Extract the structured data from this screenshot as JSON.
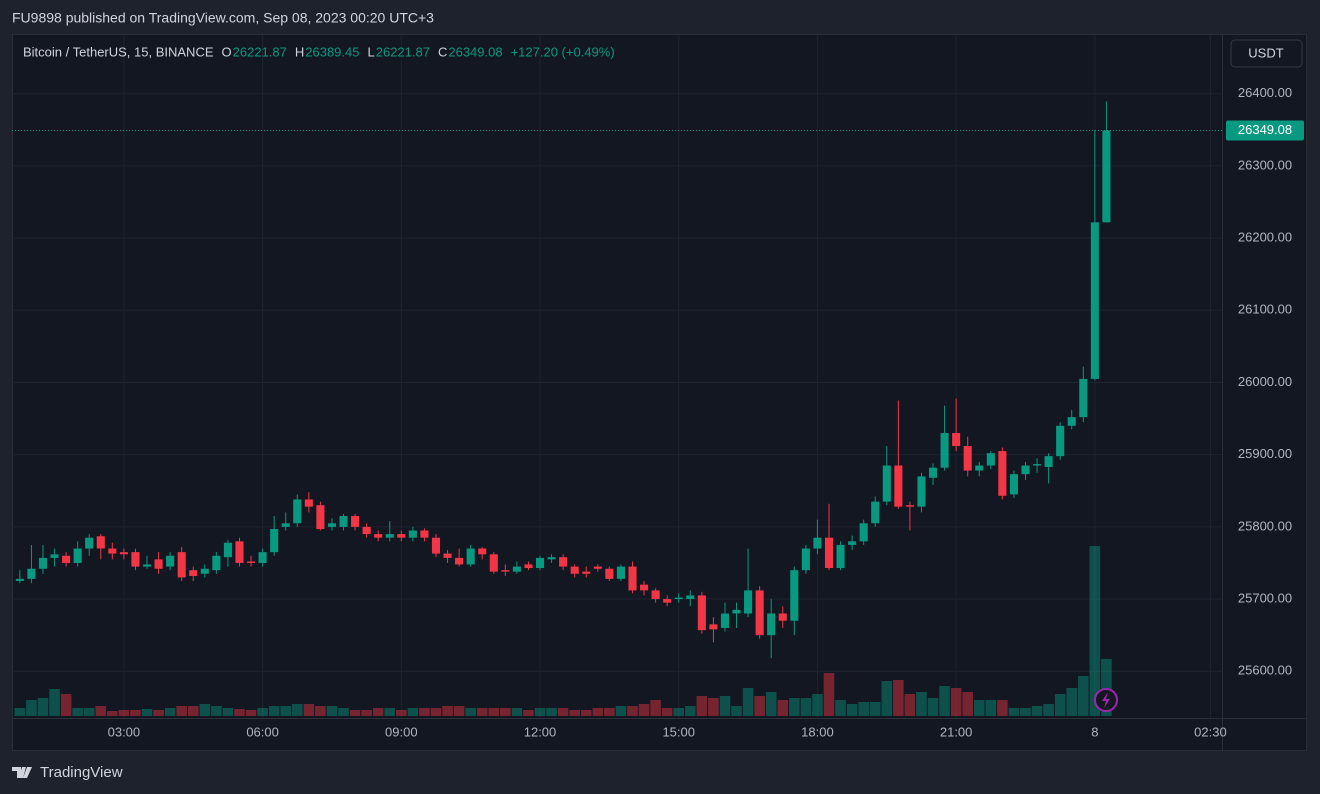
{
  "header": "FU9898 published on TradingView.com, Sep 08, 2023 00:20 UTC+3",
  "footer": "TradingView",
  "chart_data": {
    "type": "candlestick",
    "symbol": "Bitcoin / TetherUS, 15, BINANCE",
    "legend_labels": [
      "O",
      "H",
      "L",
      "C"
    ],
    "change_label": "+127.20 (+0.49%)",
    "currency": "USDT",
    "up_color": "#089981",
    "down_color": "#f23645",
    "grid": true,
    "x": [
      0.75,
      1,
      1.25,
      1.5,
      1.75,
      2,
      2.25,
      2.5,
      2.75,
      3,
      3.25,
      3.5,
      3.75,
      4,
      4.25,
      4.5,
      4.75,
      5,
      5.25,
      5.5,
      5.75,
      6,
      6.25,
      6.5,
      6.75,
      7,
      7.25,
      7.5,
      7.75,
      8,
      8.25,
      8.5,
      8.75,
      9,
      9.25,
      9.5,
      9.75,
      10,
      10.25,
      10.5,
      10.75,
      11,
      11.25,
      11.5,
      11.75,
      12,
      12.25,
      12.5,
      12.75,
      13,
      13.25,
      13.5,
      13.75,
      14,
      14.25,
      14.5,
      14.75,
      15,
      15.25,
      15.5,
      15.75,
      16,
      16.25,
      16.5,
      16.75,
      17,
      17.25,
      17.5,
      17.75,
      18,
      18.25,
      18.5,
      18.75,
      19,
      19.25,
      19.5,
      19.75,
      20,
      20.25,
      20.5,
      20.75,
      21,
      21.25,
      21.5,
      21.75,
      22,
      22.25,
      22.5,
      22.75,
      23,
      23.25,
      23.5,
      23.75,
      24,
      24.25
    ],
    "ohlc": [
      [
        25725,
        25740,
        25722,
        25728
      ],
      [
        25728,
        25775,
        25722,
        25742
      ],
      [
        25742,
        25775,
        25735,
        25757
      ],
      [
        25757,
        25770,
        25745,
        25762
      ],
      [
        25760,
        25765,
        25745,
        25750
      ],
      [
        25750,
        25780,
        25745,
        25770
      ],
      [
        25770,
        25790,
        25760,
        25785
      ],
      [
        25787,
        25790,
        25755,
        25770
      ],
      [
        25770,
        25778,
        25755,
        25763
      ],
      [
        25765,
        25770,
        25755,
        25762
      ],
      [
        25765,
        25770,
        25740,
        25745
      ],
      [
        25745,
        25760,
        25742,
        25748
      ],
      [
        25755,
        25765,
        25735,
        25742
      ],
      [
        25745,
        25765,
        25740,
        25760
      ],
      [
        25765,
        25772,
        25725,
        25730
      ],
      [
        25740,
        25745,
        25725,
        25732
      ],
      [
        25735,
        25748,
        25730,
        25742
      ],
      [
        25740,
        25765,
        25735,
        25760
      ],
      [
        25758,
        25782,
        25745,
        25778
      ],
      [
        25780,
        25785,
        25745,
        25750
      ],
      [
        25752,
        25760,
        25745,
        25750
      ],
      [
        25750,
        25770,
        25745,
        25765
      ],
      [
        25765,
        25815,
        25760,
        25797
      ],
      [
        25800,
        25820,
        25795,
        25805
      ],
      [
        25805,
        25845,
        25800,
        25838
      ],
      [
        25838,
        25848,
        25820,
        25828
      ],
      [
        25830,
        25835,
        25795,
        25797
      ],
      [
        25800,
        25812,
        25795,
        25805
      ],
      [
        25800,
        25818,
        25795,
        25815
      ],
      [
        25815,
        25818,
        25795,
        25800
      ],
      [
        25800,
        25805,
        25785,
        25790
      ],
      [
        25790,
        25795,
        25780,
        25785
      ],
      [
        25785,
        25808,
        25780,
        25790
      ],
      [
        25790,
        25795,
        25780,
        25785
      ],
      [
        25785,
        25800,
        25780,
        25795
      ],
      [
        25795,
        25798,
        25780,
        25785
      ],
      [
        25785,
        25790,
        25758,
        25763
      ],
      [
        25763,
        25768,
        25750,
        25757
      ],
      [
        25757,
        25770,
        25745,
        25748
      ],
      [
        25748,
        25775,
        25745,
        25770
      ],
      [
        25770,
        25772,
        25755,
        25762
      ],
      [
        25762,
        25765,
        25735,
        25738
      ],
      [
        25740,
        25748,
        25732,
        25738
      ],
      [
        25738,
        25752,
        25735,
        25745
      ],
      [
        25748,
        25752,
        25740,
        25743
      ],
      [
        25743,
        25760,
        25740,
        25757
      ],
      [
        25755,
        25762,
        25750,
        25758
      ],
      [
        25758,
        25762,
        25740,
        25745
      ],
      [
        25745,
        25748,
        25730,
        25735
      ],
      [
        25738,
        25745,
        25730,
        25735
      ],
      [
        25745,
        25748,
        25738,
        25742
      ],
      [
        25742,
        25745,
        25725,
        25728
      ],
      [
        25728,
        25748,
        25725,
        25745
      ],
      [
        25745,
        25752,
        25708,
        25712
      ],
      [
        25720,
        25725,
        25705,
        25712
      ],
      [
        25712,
        25715,
        25695,
        25700
      ],
      [
        25700,
        25705,
        25690,
        25695
      ],
      [
        25700,
        25708,
        25695,
        25702
      ],
      [
        25700,
        25712,
        25690,
        25705
      ],
      [
        25705,
        25710,
        25652,
        25657
      ],
      [
        25665,
        25675,
        25640,
        25658
      ],
      [
        25660,
        25695,
        25655,
        25680
      ],
      [
        25680,
        25695,
        25660,
        25685
      ],
      [
        25680,
        25770,
        25675,
        25712
      ],
      [
        25712,
        25718,
        25645,
        25650
      ],
      [
        25650,
        25700,
        25618,
        25680
      ],
      [
        25680,
        25690,
        25660,
        25670
      ],
      [
        25670,
        25745,
        25650,
        25740
      ],
      [
        25740,
        25775,
        25735,
        25770
      ],
      [
        25770,
        25810,
        25762,
        25785
      ],
      [
        25785,
        25832,
        25740,
        25743
      ],
      [
        25743,
        25780,
        25740,
        25775
      ],
      [
        25775,
        25788,
        25768,
        25780
      ],
      [
        25780,
        25810,
        25775,
        25805
      ],
      [
        25805,
        25842,
        25800,
        25835
      ],
      [
        25835,
        25912,
        25830,
        25885
      ],
      [
        25885,
        25975,
        25825,
        25828
      ],
      [
        25830,
        25835,
        25795,
        25828
      ],
      [
        25828,
        25875,
        25820,
        25870
      ],
      [
        25868,
        25888,
        25858,
        25882
      ],
      [
        25882,
        25968,
        25878,
        25930
      ],
      [
        25930,
        25978,
        25905,
        25912
      ],
      [
        25912,
        25925,
        25870,
        25878
      ],
      [
        25878,
        25890,
        25870,
        25885
      ],
      [
        25885,
        25905,
        25880,
        25902
      ],
      [
        25905,
        25910,
        25838,
        25843
      ],
      [
        25845,
        25878,
        25840,
        25873
      ],
      [
        25873,
        25890,
        25865,
        25885
      ],
      [
        25885,
        25895,
        25875,
        25887
      ],
      [
        25883,
        25902,
        25860,
        25898
      ],
      [
        25898,
        25945,
        25893,
        25940
      ],
      [
        25940,
        25962,
        25935,
        25952
      ],
      [
        25952,
        26022,
        25945,
        26005
      ],
      [
        26005,
        26350,
        26003,
        26221.87
      ],
      [
        26221.87,
        26389.45,
        26221.87,
        26349.08
      ]
    ],
    "volume": [
      8,
      16,
      18,
      27,
      22,
      8,
      8,
      10,
      5,
      6,
      6,
      7,
      6,
      8,
      10,
      10,
      12,
      10,
      8,
      7,
      6,
      8,
      10,
      10,
      12,
      12,
      10,
      10,
      8,
      6,
      6,
      8,
      8,
      6,
      8,
      8,
      8,
      10,
      10,
      8,
      8,
      8,
      8,
      8,
      6,
      8,
      8,
      8,
      6,
      6,
      8,
      8,
      10,
      10,
      12,
      16,
      8,
      8,
      10,
      20,
      18,
      20,
      10,
      28,
      20,
      24,
      16,
      18,
      18,
      22,
      43,
      16,
      12,
      14,
      14,
      35,
      36,
      22,
      24,
      18,
      30,
      28,
      24,
      16,
      16,
      16,
      8,
      8,
      10,
      12,
      22,
      28,
      40,
      170,
      57
    ],
    "xlim": [
      0.58,
      26.75
    ],
    "xticks": [
      {
        "value": 3,
        "label": "03:00"
      },
      {
        "value": 6,
        "label": "06:00"
      },
      {
        "value": 9,
        "label": "09:00"
      },
      {
        "value": 12,
        "label": "12:00"
      },
      {
        "value": 15,
        "label": "15:00"
      },
      {
        "value": 18,
        "label": "18:00"
      },
      {
        "value": 21,
        "label": "21:00"
      },
      {
        "value": 24,
        "label": "8"
      },
      {
        "value": 26.5,
        "label": "02:30"
      }
    ],
    "ylim": [
      25538,
      26480
    ],
    "yticks": [
      {
        "value": 25600,
        "label": "25600.00"
      },
      {
        "value": 25700,
        "label": "25700.00"
      },
      {
        "value": 25800,
        "label": "25800.00"
      },
      {
        "value": 25900,
        "label": "25900.00"
      },
      {
        "value": 26000,
        "label": "26000.00"
      },
      {
        "value": 26100,
        "label": "26100.00"
      },
      {
        "value": 26200,
        "label": "26200.00"
      },
      {
        "value": 26300,
        "label": "26300.00"
      },
      {
        "value": 26400,
        "label": "26400.00"
      }
    ]
  }
}
